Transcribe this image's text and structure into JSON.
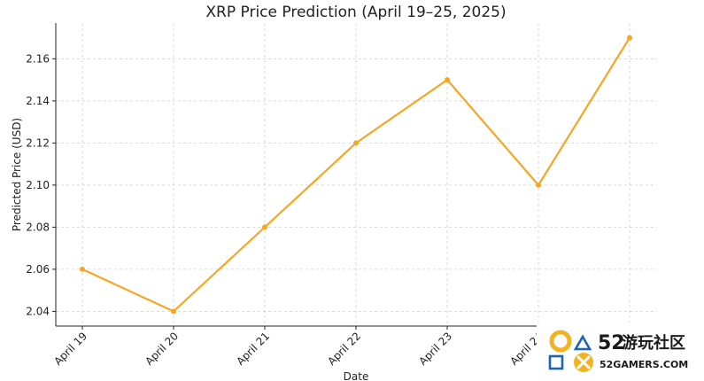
{
  "chart_data": {
    "type": "line",
    "title": "XRP Price Prediction (April 19–25, 2025)",
    "xlabel": "Date",
    "ylabel": "Predicted Price (USD)",
    "categories": [
      "April 19",
      "April 20",
      "April 21",
      "April 22",
      "April 23",
      "April 24",
      "April 25"
    ],
    "series": [
      {
        "values": [
          2.06,
          2.04,
          2.08,
          2.12,
          2.15,
          2.1,
          2.17
        ],
        "color": "#f5a623"
      }
    ],
    "ylim": [
      2.033,
      2.177
    ],
    "yticks": [
      "2.04",
      "2.06",
      "2.08",
      "2.10",
      "2.12",
      "2.14",
      "2.16"
    ],
    "grid": true,
    "legend": "none"
  },
  "watermark": {
    "number": "52",
    "cn_text": "游玩社区",
    "site": "52GAMERS.COM",
    "colors": {
      "gold": "#f0b323",
      "blue": "#1d63b6",
      "dark": "#1a1a1a"
    },
    "icons": [
      "circle-icon",
      "triangle-icon",
      "square-icon",
      "cross-icon"
    ]
  }
}
